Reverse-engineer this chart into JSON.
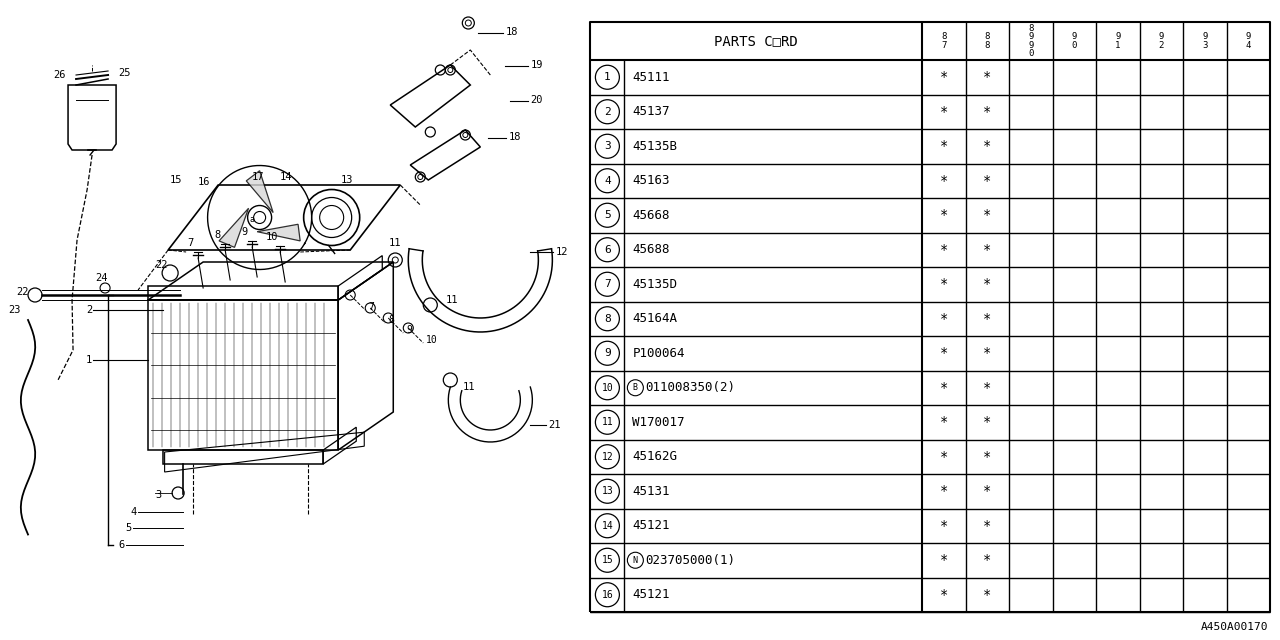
{
  "figure_code": "A450A00170",
  "bg_color": "#ffffff",
  "line_color": "#000000",
  "table": {
    "col_headers": [
      "PARTS C□RD",
      "8\n7",
      "8\n8",
      "8\n9\n9\n0",
      "9\n0",
      "9\n1",
      "9\n2",
      "9\n3",
      "9\n4"
    ],
    "rows": [
      {
        "num": "1",
        "prefix": "",
        "code": "45111",
        "87": "*",
        "88": "*",
        "89": "",
        "90": "",
        "91": "",
        "92": "",
        "93": "",
        "94": ""
      },
      {
        "num": "2",
        "prefix": "",
        "code": "45137",
        "87": "*",
        "88": "*",
        "89": "",
        "90": "",
        "91": "",
        "92": "",
        "93": "",
        "94": ""
      },
      {
        "num": "3",
        "prefix": "",
        "code": "45135B",
        "87": "*",
        "88": "*",
        "89": "",
        "90": "",
        "91": "",
        "92": "",
        "93": "",
        "94": ""
      },
      {
        "num": "4",
        "prefix": "",
        "code": "45163",
        "87": "*",
        "88": "*",
        "89": "",
        "90": "",
        "91": "",
        "92": "",
        "93": "",
        "94": ""
      },
      {
        "num": "5",
        "prefix": "",
        "code": "45668",
        "87": "*",
        "88": "*",
        "89": "",
        "90": "",
        "91": "",
        "92": "",
        "93": "",
        "94": ""
      },
      {
        "num": "6",
        "prefix": "",
        "code": "45688",
        "87": "*",
        "88": "*",
        "89": "",
        "90": "",
        "91": "",
        "92": "",
        "93": "",
        "94": ""
      },
      {
        "num": "7",
        "prefix": "",
        "code": "45135D",
        "87": "*",
        "88": "*",
        "89": "",
        "90": "",
        "91": "",
        "92": "",
        "93": "",
        "94": ""
      },
      {
        "num": "8",
        "prefix": "",
        "code": "45164A",
        "87": "*",
        "88": "*",
        "89": "",
        "90": "",
        "91": "",
        "92": "",
        "93": "",
        "94": ""
      },
      {
        "num": "9",
        "prefix": "",
        "code": "P100064",
        "87": "*",
        "88": "*",
        "89": "",
        "90": "",
        "91": "",
        "92": "",
        "93": "",
        "94": ""
      },
      {
        "num": "10",
        "prefix": "B",
        "code": "011008350(2)",
        "87": "*",
        "88": "*",
        "89": "",
        "90": "",
        "91": "",
        "92": "",
        "93": "",
        "94": ""
      },
      {
        "num": "11",
        "prefix": "",
        "code": "W170017",
        "87": "*",
        "88": "*",
        "89": "",
        "90": "",
        "91": "",
        "92": "",
        "93": "",
        "94": ""
      },
      {
        "num": "12",
        "prefix": "",
        "code": "45162G",
        "87": "*",
        "88": "*",
        "89": "",
        "90": "",
        "91": "",
        "92": "",
        "93": "",
        "94": ""
      },
      {
        "num": "13",
        "prefix": "",
        "code": "45131",
        "87": "*",
        "88": "*",
        "89": "",
        "90": "",
        "91": "",
        "92": "",
        "93": "",
        "94": ""
      },
      {
        "num": "14",
        "prefix": "",
        "code": "45121",
        "87": "*",
        "88": "*",
        "89": "",
        "90": "",
        "91": "",
        "92": "",
        "93": "",
        "94": ""
      },
      {
        "num": "15",
        "prefix": "N",
        "code": "023705000(1)",
        "87": "*",
        "88": "*",
        "89": "",
        "90": "",
        "91": "",
        "92": "",
        "93": "",
        "94": ""
      },
      {
        "num": "16",
        "prefix": "",
        "code": "45121",
        "87": "*",
        "88": "*",
        "89": "",
        "90": "",
        "91": "",
        "92": "",
        "93": "",
        "94": ""
      }
    ]
  }
}
